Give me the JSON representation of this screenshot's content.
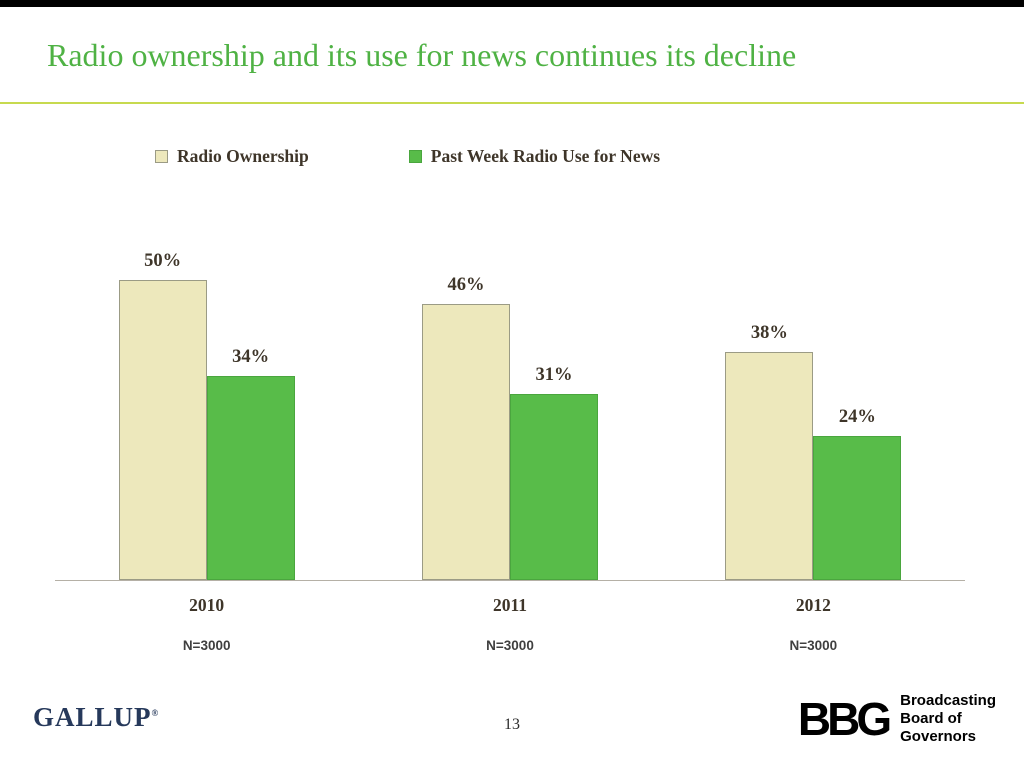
{
  "slide": {
    "title": "Radio ownership and its use for news continues its decline"
  },
  "colors": {
    "title_green": "#4FB244",
    "rule_yellow_green": "#C7DA4F",
    "bar_cream": "#EDE8BC",
    "bar_cream_border": "#9B9B85",
    "bar_green": "#58BC49",
    "bar_green_border": "#4AA63E",
    "label_text": "#3E3529",
    "axis_line": "#B5B0A6"
  },
  "chart_data": {
    "type": "bar",
    "categories": [
      "2010",
      "2011",
      "2012"
    ],
    "series": [
      {
        "name": "Radio Ownership",
        "values": [
          50,
          46,
          38
        ],
        "color": "#EDE8BC",
        "border": "#9B9B85"
      },
      {
        "name": "Past Week Radio Use for News",
        "values": [
          34,
          31,
          24
        ],
        "color": "#58BC49",
        "border": "#4AA63E"
      }
    ],
    "data_labels": [
      [
        "50%",
        "46%",
        "38%"
      ],
      [
        "34%",
        "31%",
        "24%"
      ]
    ],
    "sample_sizes": [
      "N=3000",
      "N=3000",
      "N=3000"
    ],
    "title": "Radio ownership and its use for news continues its decline",
    "xlabel": "",
    "ylabel": "",
    "ylim": [
      0,
      55
    ],
    "grid": false,
    "legend_position": "top"
  },
  "footer": {
    "gallup_logo": "GALLUP",
    "registered_mark": "®",
    "page_number": "13",
    "bbg_acronym": "BBG",
    "bbg_lines": [
      "Broadcasting",
      "Board of",
      "Governors"
    ]
  }
}
